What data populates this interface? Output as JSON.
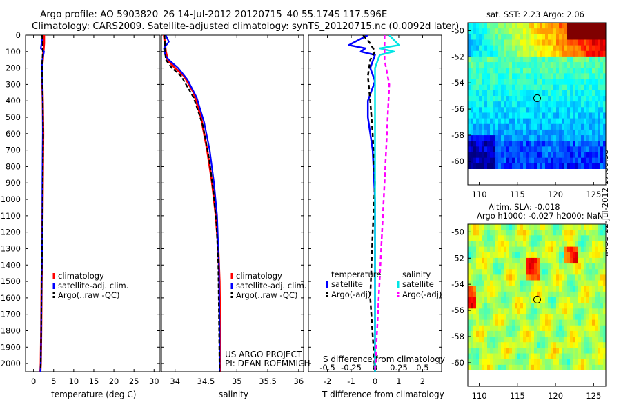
{
  "header": {
    "line1": "Argo profile: AO 5903820_26 14-Jul-2012 20120715_40 55.174S 117.596E",
    "line2": "Climatology: CARS2009. Satellite-adjusted climatology: synTS_20120715.nc (0.0092d later)"
  },
  "colors": {
    "climatology": "#ff0000",
    "satellite": "#0000ff",
    "argo": "#000000",
    "sal_satellite": "#00e5e5",
    "sal_argo": "#ff00ff"
  },
  "depth_axis": {
    "ticks": [
      "0",
      "100",
      "200",
      "300",
      "400",
      "500",
      "600",
      "700",
      "800",
      "900",
      "1000",
      "1100",
      "1200",
      "1300",
      "1400",
      "1500",
      "1600",
      "1700",
      "1800",
      "1900",
      "2000"
    ],
    "range": [
      0,
      2050
    ]
  },
  "panel_temp": {
    "xlabel": "temperature (deg C)",
    "xticks": [
      "0",
      "5",
      "10",
      "15",
      "20",
      "25",
      "30"
    ],
    "legend": [
      "climatology",
      "satellite-adj. clim.",
      "Argo(..raw -QC)"
    ]
  },
  "panel_sal": {
    "xlabel": "salinity",
    "xticks": [
      "34",
      "34.5",
      "35",
      "35.5",
      "36"
    ],
    "legend": [
      "climatology",
      "satellite-adj. clim.",
      "Argo(..raw -QC)"
    ],
    "credit1": "US ARGO PROJECT",
    "credit2": "PI: DEAN ROEMMICH"
  },
  "panel_diff": {
    "top_xticks": [
      "-0.5",
      "-0.25",
      "0",
      "0.25",
      "0.5"
    ],
    "top_xlabel": "S difference from climatology",
    "xticks": [
      "-2",
      "-1",
      "0",
      "1",
      "2"
    ],
    "xlabel": "T difference from climatology",
    "legend_temp_head": "temperature",
    "legend_sal_head": "salinity",
    "legend_temp": [
      "satellite",
      "Argo(-adj)"
    ],
    "legend_sal": [
      "satellite",
      "Argo(-adj)"
    ]
  },
  "map_sst": {
    "title": "sat. SST: 2.23 Argo: 2.06",
    "yticks": [
      "-50",
      "-52",
      "-54",
      "-56",
      "-58",
      "-60"
    ],
    "xticks": [
      "110",
      "115",
      "120",
      "125"
    ]
  },
  "map_sla": {
    "title1": "Altim. SLA: -0.018",
    "title2": "Argo h1000: -0.027 h2000: NaN",
    "yticks": [
      "-50",
      "-52",
      "-54",
      "-56",
      "-58",
      "-60"
    ],
    "xticks": [
      "110",
      "115",
      "120",
      "125"
    ]
  },
  "footer_side": "IMOS 22-Jul-2012 17:00:58",
  "chart_data": [
    {
      "type": "line",
      "xlabel": "temperature (deg C)",
      "xlim": [
        -2,
        31.5
      ],
      "ylim": [
        2050,
        0
      ],
      "series": [
        {
          "name": "climatology",
          "x": [
            2.6,
            2.6,
            2.3,
            2.1,
            2.2,
            2.3,
            2.4,
            2.3,
            2.2,
            2.0,
            1.9,
            1.8,
            1.7
          ],
          "y": [
            0,
            50,
            150,
            200,
            300,
            400,
            600,
            900,
            1200,
            1500,
            1800,
            2000,
            2050
          ]
        },
        {
          "name": "satellite-adj. clim.",
          "x": [
            2.3,
            1.8,
            2.6,
            2.2,
            2.1,
            2.3,
            2.3,
            2.2,
            2.2,
            2.0,
            1.9,
            1.8,
            1.7
          ],
          "y": [
            0,
            80,
            100,
            150,
            200,
            400,
            600,
            900,
            1200,
            1500,
            1800,
            2000,
            2050
          ]
        },
        {
          "name": "Argo(..raw -QC)",
          "x": [
            2.1,
            2.3,
            2.3,
            2.2,
            2.1,
            2.3,
            2.4,
            2.3,
            2.2,
            2.0,
            1.9,
            1.8,
            1.75
          ],
          "y": [
            0,
            50,
            100,
            150,
            200,
            400,
            600,
            900,
            1200,
            1500,
            1800,
            2000,
            2040
          ]
        }
      ]
    },
    {
      "type": "line",
      "xlabel": "salinity",
      "xlim": [
        33.78,
        36.08
      ],
      "ylim": [
        2050,
        0
      ],
      "series": [
        {
          "name": "climatology",
          "x": [
            33.82,
            33.85,
            33.88,
            34.0,
            34.15,
            34.3,
            34.42,
            34.52,
            34.6,
            34.66,
            34.7,
            34.72,
            34.73,
            34.73
          ],
          "y": [
            0,
            100,
            150,
            200,
            250,
            350,
            500,
            700,
            900,
            1100,
            1300,
            1500,
            1800,
            2050
          ]
        },
        {
          "name": "satellite-adj. clim.",
          "x": [
            33.85,
            33.9,
            33.82,
            33.84,
            33.9,
            34.05,
            34.2,
            34.35,
            34.47,
            34.56,
            34.63,
            34.68,
            34.71,
            34.72,
            34.72
          ],
          "y": [
            0,
            40,
            80,
            120,
            150,
            200,
            270,
            380,
            530,
            700,
            900,
            1100,
            1400,
            1800,
            2050
          ]
        },
        {
          "name": "Argo(..raw -QC)",
          "x": [
            33.83,
            33.84,
            33.85,
            33.95,
            34.1,
            34.3,
            34.45,
            34.55,
            34.62,
            34.67,
            34.7,
            34.71,
            34.72
          ],
          "y": [
            0,
            100,
            150,
            200,
            250,
            380,
            550,
            750,
            950,
            1150,
            1400,
            1700,
            2050
          ]
        }
      ]
    },
    {
      "type": "line",
      "xlabel": "T difference from climatology",
      "x2label": "S difference from climatology",
      "xlim": [
        -2.8,
        2.8
      ],
      "ylim": [
        2050,
        0
      ],
      "series": [
        {
          "name": "temperature satellite",
          "x": [
            -0.3,
            -1.1,
            -0.4,
            -0.6,
            0.0,
            -0.2,
            0.0,
            -0.3,
            -0.3,
            -0.1,
            0.0,
            0.0
          ],
          "y": [
            0,
            60,
            80,
            100,
            120,
            200,
            280,
            400,
            500,
            700,
            1000,
            2050
          ]
        },
        {
          "name": "temperature Argo(-adj)",
          "x": [
            -0.5,
            -0.2,
            0.0,
            -0.2,
            -0.3,
            -0.2,
            -0.1,
            0.0,
            -0.1,
            -0.2,
            0.0
          ],
          "y": [
            0,
            50,
            100,
            150,
            250,
            400,
            600,
            900,
            1200,
            1600,
            2050
          ]
        },
        {
          "name": "salinity satellite",
          "x": [
            0.15,
            0.25,
            0.05,
            0.2,
            0.05,
            0.0,
            0.0,
            0.0
          ],
          "y": [
            0,
            60,
            80,
            100,
            120,
            200,
            500,
            2050
          ]
        },
        {
          "name": "salinity Argo(-adj)",
          "x": [
            0.1,
            0.1,
            0.15,
            0.1,
            0.0
          ],
          "y": [
            0,
            150,
            300,
            900,
            2050
          ]
        }
      ]
    }
  ]
}
